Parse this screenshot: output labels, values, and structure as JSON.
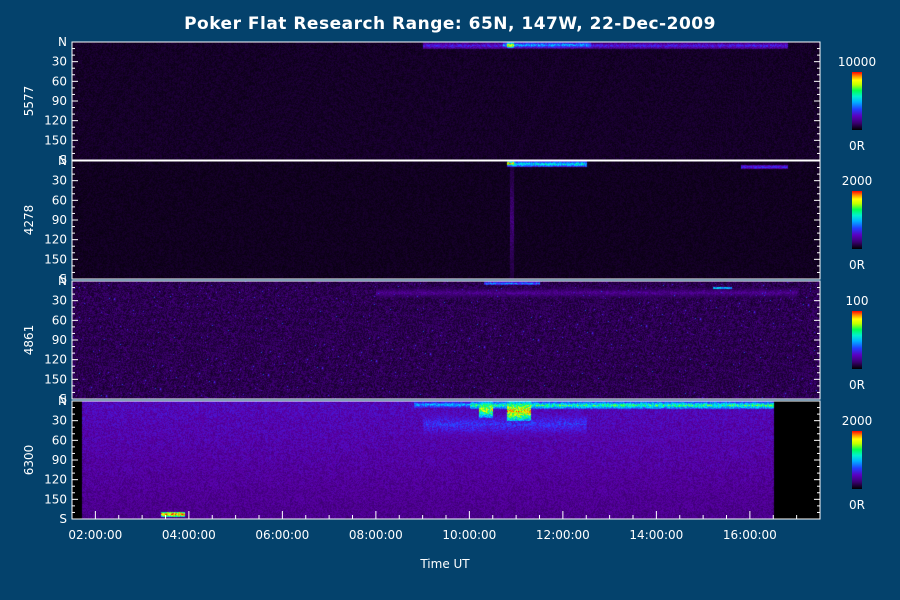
{
  "chart_data": {
    "type": "heatmap",
    "title": "Poker Flat Research Range: 65N, 147W, 22-Dec-2009",
    "xlabel": "Time UT",
    "x_ticks": [
      "02:00:00",
      "04:00:00",
      "06:00:00",
      "08:00:00",
      "10:00:00",
      "12:00:00",
      "14:00:00",
      "16:00:00"
    ],
    "x_range_hours": [
      1.5,
      17.5
    ],
    "y_ticks": [
      "N",
      "30",
      "60",
      "90",
      "120",
      "150",
      "S"
    ],
    "y_range_deg": [
      0,
      180
    ],
    "colormap": [
      "#000000",
      "#2a0050",
      "#5a00a8",
      "#3a2cff",
      "#0090ff",
      "#00e8ff",
      "#00ff70",
      "#b4ff00",
      "#ffff00",
      "#ff9000",
      "#ff0000"
    ],
    "panels": [
      {
        "label": "5577",
        "cbar_max": "10000",
        "cbar_min": "0R",
        "background_intensity": 0.05,
        "data_range_hours": [
          1.5,
          17.5
        ],
        "features": [
          {
            "t": [
              9.0,
              16.8
            ],
            "theta": [
              0,
              10
            ],
            "intensity": 0.28
          },
          {
            "t": [
              10.7,
              12.6
            ],
            "theta": [
              0,
              8
            ],
            "intensity": 0.45
          },
          {
            "t": [
              10.8,
              10.95
            ],
            "theta": [
              0,
              8
            ],
            "intensity": 0.8
          }
        ]
      },
      {
        "label": "4278",
        "cbar_max": "2000",
        "cbar_min": "0R",
        "background_intensity": 0.04,
        "data_range_hours": [
          1.5,
          17.5
        ],
        "features": [
          {
            "t": [
              10.8,
              12.5
            ],
            "theta": [
              0,
              8
            ],
            "intensity": 0.55
          },
          {
            "t": [
              10.8,
              10.95
            ],
            "theta": [
              0,
              6
            ],
            "intensity": 0.85
          },
          {
            "t": [
              10.85,
              10.95
            ],
            "theta": [
              0,
              180
            ],
            "intensity": 0.15
          },
          {
            "t": [
              15.8,
              16.8
            ],
            "theta": [
              5,
              12
            ],
            "intensity": 0.3
          }
        ]
      },
      {
        "label": "4861",
        "cbar_max": "100",
        "cbar_min": "0R",
        "background_intensity": 0.1,
        "data_range_hours": [
          1.5,
          17.5
        ],
        "features": [
          {
            "t": [
              10.3,
              11.5
            ],
            "theta": [
              0,
              6
            ],
            "intensity": 0.4
          },
          {
            "t": [
              15.2,
              15.6
            ],
            "theta": [
              8,
              12
            ],
            "intensity": 0.55
          },
          {
            "t": [
              8.0,
              17.0
            ],
            "theta": [
              10,
              25
            ],
            "intensity": 0.18
          }
        ]
      },
      {
        "label": "6300",
        "cbar_max": "2000",
        "cbar_min": "0R",
        "background_intensity": 0.22,
        "data_range_hours": [
          1.7,
          16.5
        ],
        "features": [
          {
            "t": [
              8.8,
              10.0
            ],
            "theta": [
              0,
              10
            ],
            "intensity": 0.45
          },
          {
            "t": [
              10.0,
              16.5
            ],
            "theta": [
              0,
              12
            ],
            "intensity": 0.6
          },
          {
            "t": [
              10.2,
              10.5
            ],
            "theta": [
              0,
              25
            ],
            "intensity": 0.75
          },
          {
            "t": [
              10.8,
              11.3
            ],
            "theta": [
              0,
              30
            ],
            "intensity": 0.85
          },
          {
            "t": [
              9.0,
              12.5
            ],
            "theta": [
              10,
              60
            ],
            "intensity": 0.3
          },
          {
            "t": [
              3.4,
              3.9
            ],
            "theta": [
              168,
              176
            ],
            "intensity": 0.95
          }
        ]
      }
    ]
  }
}
